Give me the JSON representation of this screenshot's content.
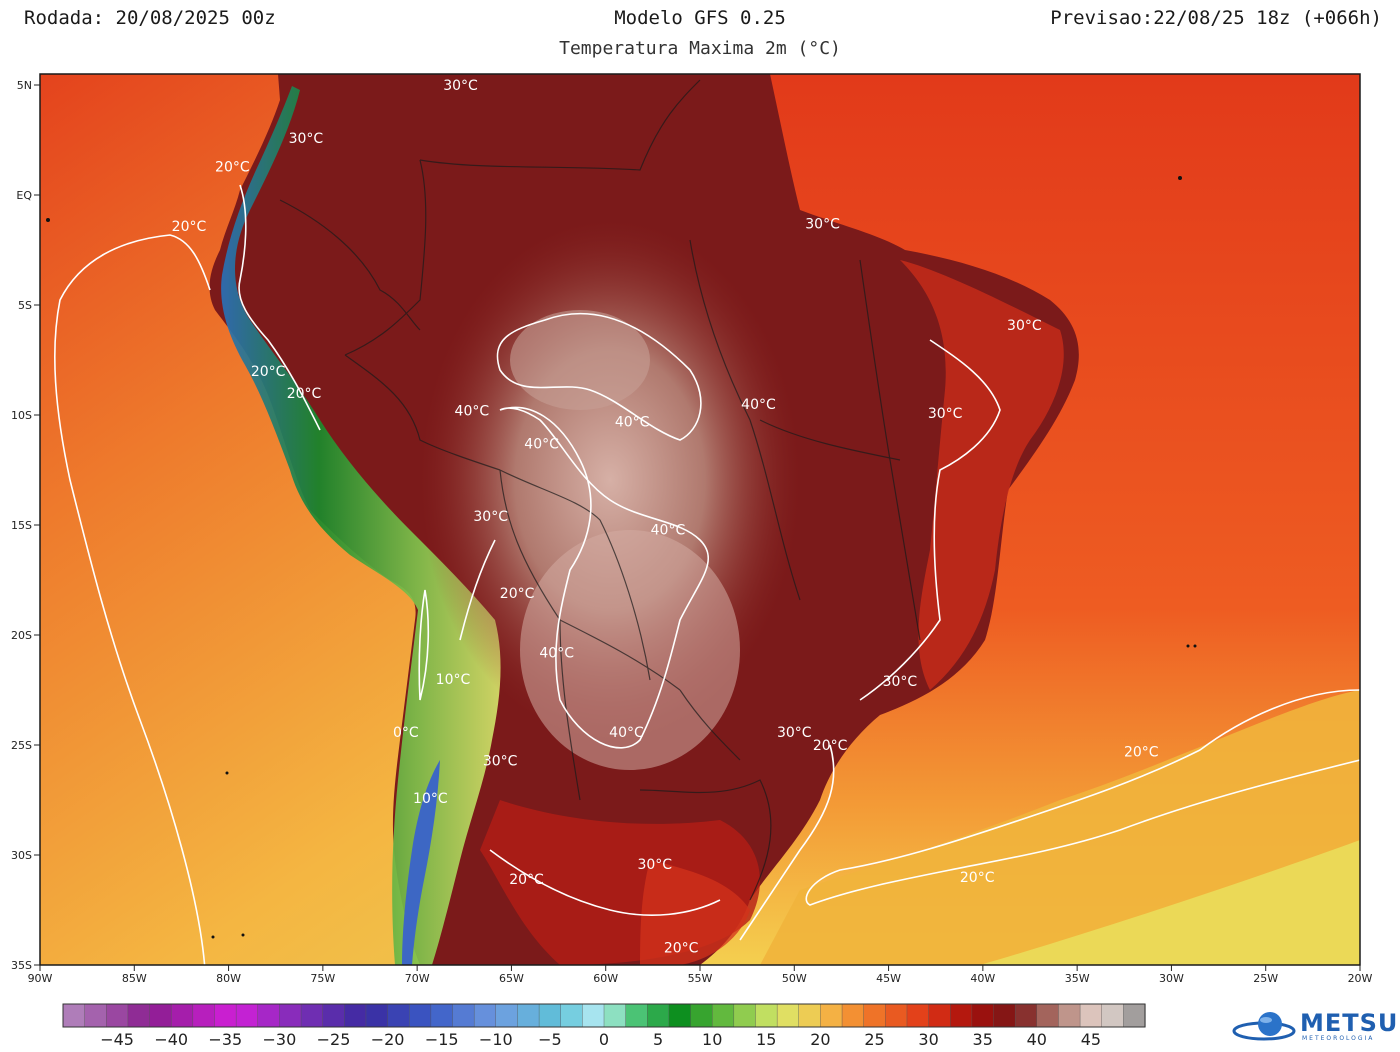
{
  "header": {
    "run": "Rodada: 20/08/2025 00z",
    "model": "Modelo GFS 0.25",
    "forecast": "Previsao:22/08/25 18z (+066h)",
    "field": "Temperatura Maxima 2m (°C)"
  },
  "map": {
    "lon_labels": [
      "90W",
      "85W",
      "80W",
      "75W",
      "70W",
      "65W",
      "60W",
      "55W",
      "50W",
      "45W",
      "40W",
      "35W",
      "30W",
      "25W",
      "20W"
    ],
    "lat_labels": [
      "5N",
      "EQ",
      "5S",
      "10S",
      "15S",
      "20S",
      "25S",
      "30S",
      "35S"
    ],
    "contour_labels": [
      {
        "text": "30°C",
        "lon": -67.7,
        "lat": 5.0
      },
      {
        "text": "30°C",
        "lon": -75.9,
        "lat": 2.6
      },
      {
        "text": "20°C",
        "lon": -79.8,
        "lat": 1.3
      },
      {
        "text": "20°C",
        "lon": -82.1,
        "lat": -1.4
      },
      {
        "text": "30°C",
        "lon": -48.5,
        "lat": -1.3
      },
      {
        "text": "30°C",
        "lon": -37.8,
        "lat": -5.9
      },
      {
        "text": "20°C",
        "lon": -77.9,
        "lat": -8.0
      },
      {
        "text": "20°C",
        "lon": -76.0,
        "lat": -9.0
      },
      {
        "text": "40°C",
        "lon": -67.1,
        "lat": -9.8
      },
      {
        "text": "40°C",
        "lon": -51.9,
        "lat": -9.5
      },
      {
        "text": "30°C",
        "lon": -42.0,
        "lat": -9.9
      },
      {
        "text": "40°C",
        "lon": -58.6,
        "lat": -10.3
      },
      {
        "text": "40°C",
        "lon": -63.4,
        "lat": -11.3
      },
      {
        "text": "30°C",
        "lon": -66.1,
        "lat": -14.6
      },
      {
        "text": "40°C",
        "lon": -56.7,
        "lat": -15.2
      },
      {
        "text": "20°C",
        "lon": -64.7,
        "lat": -18.1
      },
      {
        "text": "40°C",
        "lon": -62.6,
        "lat": -20.8
      },
      {
        "text": "10°C",
        "lon": -68.1,
        "lat": -22.0
      },
      {
        "text": "30°C",
        "lon": -44.4,
        "lat": -22.1
      },
      {
        "text": "30°C",
        "lon": -50.0,
        "lat": -24.4
      },
      {
        "text": "40°C",
        "lon": -58.9,
        "lat": -24.4
      },
      {
        "text": "0°C",
        "lon": -70.6,
        "lat": -24.4
      },
      {
        "text": "20°C",
        "lon": -48.1,
        "lat": -25.0
      },
      {
        "text": "20°C",
        "lon": -31.6,
        "lat": -25.3
      },
      {
        "text": "30°C",
        "lon": -65.6,
        "lat": -25.7
      },
      {
        "text": "10°C",
        "lon": -69.3,
        "lat": -27.4
      },
      {
        "text": "30°C",
        "lon": -57.4,
        "lat": -30.4
      },
      {
        "text": "20°C",
        "lon": -64.2,
        "lat": -31.1
      },
      {
        "text": "20°C",
        "lon": -40.3,
        "lat": -31.0
      },
      {
        "text": "20°C",
        "lon": -56.0,
        "lat": -34.2
      }
    ]
  },
  "colorbar": {
    "ticks": [
      "-45",
      "-40",
      "-35",
      "-30",
      "-25",
      "-20",
      "-15",
      "-10",
      "-5",
      "0",
      "5",
      "10",
      "15",
      "20",
      "25",
      "30",
      "35",
      "40",
      "45"
    ],
    "tick_values": [
      -45,
      -40,
      -35,
      -30,
      -25,
      -20,
      -15,
      -10,
      -5,
      0,
      5,
      10,
      15,
      20,
      25,
      30,
      35,
      40,
      45
    ],
    "min": -50,
    "max": 50,
    "step": 2,
    "stops": [
      {
        "v": -50,
        "c": "#b48bbf"
      },
      {
        "v": -42,
        "c": "#8a1e8f"
      },
      {
        "v": -34,
        "c": "#d21fd9"
      },
      {
        "v": -28,
        "c": "#7a2fb5"
      },
      {
        "v": -22,
        "c": "#3a2aa0"
      },
      {
        "v": -16,
        "c": "#3a5bc6"
      },
      {
        "v": -10,
        "c": "#6f9be0"
      },
      {
        "v": -4,
        "c": "#5ec3d8"
      },
      {
        "v": 0,
        "c": "#bfeff7"
      },
      {
        "v": 2,
        "c": "#5ad08b"
      },
      {
        "v": 7,
        "c": "#0d8f1f"
      },
      {
        "v": 12,
        "c": "#77c346"
      },
      {
        "v": 16,
        "c": "#d9e86a"
      },
      {
        "v": 20,
        "c": "#f4c24c"
      },
      {
        "v": 24,
        "c": "#f27f2b"
      },
      {
        "v": 30,
        "c": "#e03417"
      },
      {
        "v": 34,
        "c": "#a50e0b"
      },
      {
        "v": 38,
        "c": "#7a1818"
      },
      {
        "v": 42,
        "c": "#b07d72"
      },
      {
        "v": 46,
        "c": "#eadbd4"
      },
      {
        "v": 50,
        "c": "#8a8a8a"
      }
    ]
  },
  "colors": {
    "ocean_warm": "#e9411c",
    "ocean_cool": "#f4d150",
    "land_hot": "#7b1a1a",
    "land_hottest": "#c99d93",
    "andes_cold": "#1b7d2a"
  },
  "logo": {
    "name": "METSUL",
    "sub": "METEOROLOGIA",
    "icon": "globe-icon"
  }
}
